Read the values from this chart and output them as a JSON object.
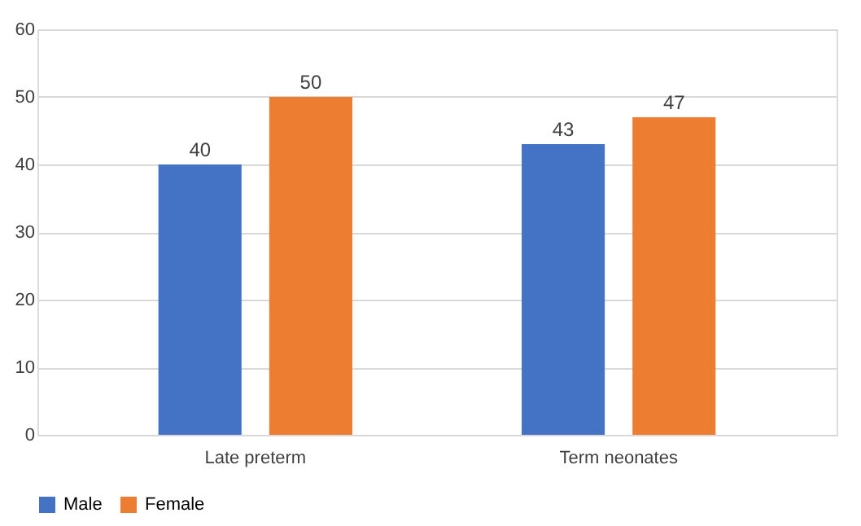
{
  "chart_data": {
    "type": "bar",
    "categories": [
      "Late preterm",
      "Term neonates"
    ],
    "series": [
      {
        "name": "Male",
        "color": "#4472c4",
        "values": [
          40,
          43
        ]
      },
      {
        "name": "Female",
        "color": "#ed7d31",
        "values": [
          50,
          47
        ]
      }
    ],
    "ylim": [
      0,
      60
    ],
    "yticks": [
      0,
      10,
      20,
      30,
      40,
      50,
      60
    ],
    "grid": "y",
    "legend": "bottom",
    "data_labels": true
  }
}
